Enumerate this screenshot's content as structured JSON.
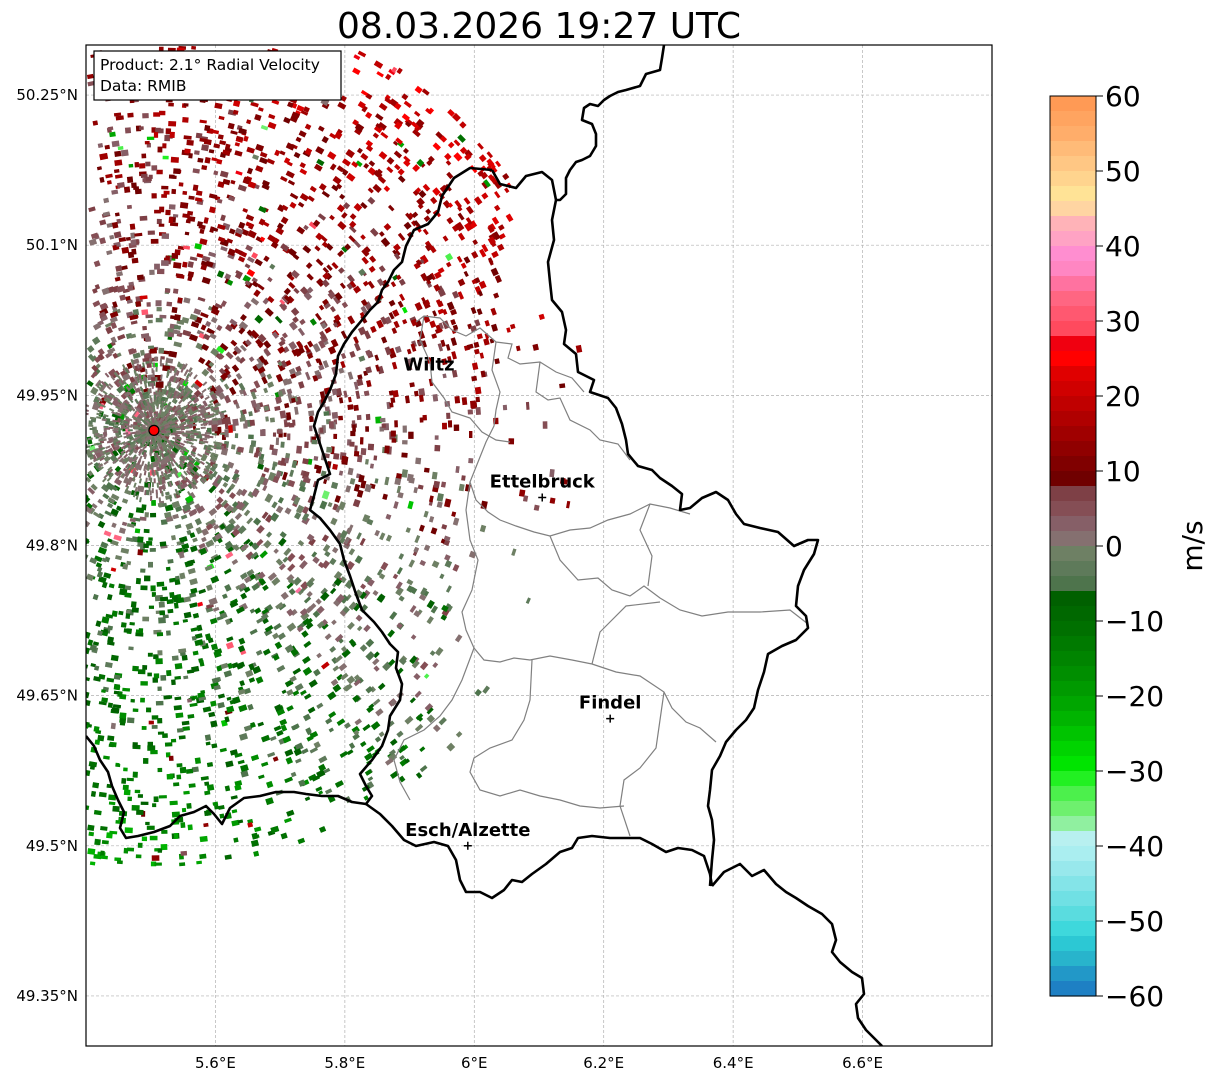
{
  "title": "08.03.2026 19:27 UTC",
  "info_box": {
    "product": "Product: 2.1° Radial Velocity",
    "data": "Data: RMIB"
  },
  "map": {
    "lon_range": [
      5.4,
      6.8
    ],
    "lat_range": [
      49.3,
      50.3
    ],
    "grid": true,
    "x_ticks": [
      {
        "value": 5.6,
        "label": "5.6°E"
      },
      {
        "value": 5.8,
        "label": "5.8°E"
      },
      {
        "value": 6.0,
        "label": "6°E"
      },
      {
        "value": 6.2,
        "label": "6.2°E"
      },
      {
        "value": 6.4,
        "label": "6.4°E"
      },
      {
        "value": 6.6,
        "label": "6.6°E"
      }
    ],
    "y_ticks": [
      {
        "value": 49.35,
        "label": "49.35°N"
      },
      {
        "value": 49.5,
        "label": "49.5°N"
      },
      {
        "value": 49.65,
        "label": "49.65°N"
      },
      {
        "value": 49.8,
        "label": "49.8°N"
      },
      {
        "value": 49.95,
        "label": "49.95°N"
      },
      {
        "value": 50.1,
        "label": "50.1°N"
      },
      {
        "value": 50.25,
        "label": "50.25°N"
      }
    ],
    "radar_site": {
      "lon": 5.505,
      "lat": 49.915,
      "color": "#ff0000"
    },
    "cities": [
      {
        "name": "Wiltz",
        "lon": 5.93,
        "lat": 49.965,
        "marker": false
      },
      {
        "name": "Ettelbruck",
        "lon": 6.105,
        "lat": 49.848,
        "marker": true
      },
      {
        "name": "Findel",
        "lon": 6.21,
        "lat": 49.627,
        "marker": true
      },
      {
        "name": "Esch/Alzette",
        "lon": 5.99,
        "lat": 49.5,
        "marker": true
      }
    ]
  },
  "colorbar": {
    "label": "m/s",
    "min": -60,
    "max": 60,
    "ticks": [
      {
        "value": 60,
        "label": "60"
      },
      {
        "value": 50,
        "label": "50"
      },
      {
        "value": 40,
        "label": "40"
      },
      {
        "value": 30,
        "label": "30"
      },
      {
        "value": 20,
        "label": "20"
      },
      {
        "value": 10,
        "label": "10"
      },
      {
        "value": 0,
        "label": "0"
      },
      {
        "value": -10,
        "label": "−10"
      },
      {
        "value": -20,
        "label": "−20"
      },
      {
        "value": -30,
        "label": "−30"
      },
      {
        "value": -40,
        "label": "−40"
      },
      {
        "value": -50,
        "label": "−50"
      },
      {
        "value": -60,
        "label": "−60"
      }
    ],
    "stops": [
      {
        "from": 58,
        "to": 60,
        "color": "#ff9a55"
      },
      {
        "from": 56,
        "to": 58,
        "color": "#ffa460"
      },
      {
        "from": 54,
        "to": 56,
        "color": "#ffad6a"
      },
      {
        "from": 52,
        "to": 54,
        "color": "#ffbb78"
      },
      {
        "from": 50,
        "to": 52,
        "color": "#ffc784"
      },
      {
        "from": 48,
        "to": 50,
        "color": "#ffd48e"
      },
      {
        "from": 46,
        "to": 48,
        "color": "#ffe396"
      },
      {
        "from": 44,
        "to": 46,
        "color": "#ffd5a2"
      },
      {
        "from": 42,
        "to": 44,
        "color": "#ffb3b8"
      },
      {
        "from": 40,
        "to": 42,
        "color": "#ffa3c4"
      },
      {
        "from": 38,
        "to": 40,
        "color": "#ff8ed0"
      },
      {
        "from": 36,
        "to": 38,
        "color": "#ff86c2"
      },
      {
        "from": 34,
        "to": 36,
        "color": "#ff72a0"
      },
      {
        "from": 32,
        "to": 34,
        "color": "#ff6682"
      },
      {
        "from": 30,
        "to": 32,
        "color": "#ff5870"
      },
      {
        "from": 28,
        "to": 30,
        "color": "#ff4a5e"
      },
      {
        "from": 26,
        "to": 28,
        "color": "#f00010"
      },
      {
        "from": 24,
        "to": 26,
        "color": "#ff0000"
      },
      {
        "from": 22,
        "to": 24,
        "color": "#e00000"
      },
      {
        "from": 20,
        "to": 22,
        "color": "#d00000"
      },
      {
        "from": 18,
        "to": 20,
        "color": "#c00000"
      },
      {
        "from": 16,
        "to": 18,
        "color": "#b00000"
      },
      {
        "from": 14,
        "to": 16,
        "color": "#a00000"
      },
      {
        "from": 12,
        "to": 14,
        "color": "#900000"
      },
      {
        "from": 10,
        "to": 12,
        "color": "#800000"
      },
      {
        "from": 8,
        "to": 10,
        "color": "#700000"
      },
      {
        "from": 6,
        "to": 8,
        "color": "#7e4046"
      },
      {
        "from": 4,
        "to": 6,
        "color": "#854e55"
      },
      {
        "from": 2,
        "to": 4,
        "color": "#865f67"
      },
      {
        "from": 0,
        "to": 2,
        "color": "#857070"
      },
      {
        "from": -2,
        "to": 0,
        "color": "#6e8064"
      },
      {
        "from": -4,
        "to": -2,
        "color": "#5e7a5a"
      },
      {
        "from": -6,
        "to": -4,
        "color": "#4e744c"
      },
      {
        "from": -8,
        "to": -6,
        "color": "#006000"
      },
      {
        "from": -10,
        "to": -8,
        "color": "#006800"
      },
      {
        "from": -12,
        "to": -10,
        "color": "#007000"
      },
      {
        "from": -14,
        "to": -12,
        "color": "#007a00"
      },
      {
        "from": -16,
        "to": -14,
        "color": "#008400"
      },
      {
        "from": -18,
        "to": -16,
        "color": "#008e00"
      },
      {
        "from": -20,
        "to": -18,
        "color": "#009a00"
      },
      {
        "from": -22,
        "to": -20,
        "color": "#00a600"
      },
      {
        "from": -24,
        "to": -22,
        "color": "#00b400"
      },
      {
        "from": -26,
        "to": -24,
        "color": "#00c400"
      },
      {
        "from": -28,
        "to": -26,
        "color": "#00d400"
      },
      {
        "from": -30,
        "to": -28,
        "color": "#00e400"
      },
      {
        "from": -32,
        "to": -30,
        "color": "#22f022"
      },
      {
        "from": -34,
        "to": -32,
        "color": "#4cf04c"
      },
      {
        "from": -36,
        "to": -34,
        "color": "#6ef06e"
      },
      {
        "from": -38,
        "to": -36,
        "color": "#90f0a0"
      },
      {
        "from": -40,
        "to": -38,
        "color": "#b8f0f0"
      },
      {
        "from": -42,
        "to": -40,
        "color": "#aaeef0"
      },
      {
        "from": -44,
        "to": -42,
        "color": "#98e8ec"
      },
      {
        "from": -46,
        "to": -44,
        "color": "#84e4e8"
      },
      {
        "from": -48,
        "to": -46,
        "color": "#70e0e4"
      },
      {
        "from": -50,
        "to": -48,
        "color": "#5adcdf"
      },
      {
        "from": -52,
        "to": -50,
        "color": "#3ed8dc"
      },
      {
        "from": -54,
        "to": -52,
        "color": "#2cc8d4"
      },
      {
        "from": -56,
        "to": -54,
        "color": "#28b4cc"
      },
      {
        "from": -58,
        "to": -56,
        "color": "#2298c8"
      },
      {
        "from": -60,
        "to": -58,
        "color": "#1e80c4"
      }
    ]
  },
  "colors": {
    "frame": "#000000",
    "grid": "#b0b0b0",
    "country_border": "#000000",
    "canton_border": "#808080"
  }
}
